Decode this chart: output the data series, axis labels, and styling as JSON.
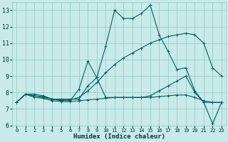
{
  "xlabel": "Humidex (Indice chaleur)",
  "xlim": [
    -0.5,
    23.5
  ],
  "ylim": [
    6,
    13.5
  ],
  "yticks": [
    6,
    7,
    8,
    9,
    10,
    11,
    12,
    13
  ],
  "xticks": [
    0,
    1,
    2,
    3,
    4,
    5,
    6,
    7,
    8,
    9,
    10,
    11,
    12,
    13,
    14,
    15,
    16,
    17,
    18,
    19,
    20,
    21,
    22,
    23
  ],
  "bg_color": "#c8eaea",
  "line_color": "#006060",
  "grid_color": "#90c8c0",
  "series": [
    [
      7.4,
      7.9,
      7.9,
      7.8,
      7.6,
      7.6,
      7.6,
      7.6,
      8.4,
      8.9,
      10.8,
      13.0,
      12.5,
      12.5,
      12.8,
      13.3,
      11.5,
      10.5,
      9.4,
      9.5,
      8.1,
      7.4,
      6.1,
      7.4
    ],
    [
      7.4,
      7.9,
      7.8,
      7.7,
      7.6,
      7.5,
      7.5,
      8.2,
      9.9,
      8.9,
      7.7,
      7.7,
      7.7,
      7.7,
      7.7,
      7.8,
      8.1,
      8.4,
      8.7,
      9.0,
      8.0,
      7.4,
      7.4,
      7.4
    ],
    [
      7.4,
      7.9,
      7.8,
      7.75,
      7.6,
      7.55,
      7.55,
      7.7,
      8.1,
      8.6,
      9.2,
      9.7,
      10.1,
      10.4,
      10.7,
      11.0,
      11.2,
      11.4,
      11.5,
      11.6,
      11.5,
      11.0,
      9.5,
      9.0
    ],
    [
      7.4,
      7.9,
      7.7,
      7.65,
      7.5,
      7.45,
      7.45,
      7.5,
      7.55,
      7.6,
      7.65,
      7.7,
      7.7,
      7.7,
      7.7,
      7.7,
      7.75,
      7.8,
      7.85,
      7.85,
      7.7,
      7.5,
      7.4,
      7.4
    ]
  ]
}
